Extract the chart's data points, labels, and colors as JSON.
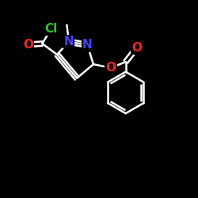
{
  "background": "#000000",
  "bond_color": "#ffffff",
  "bond_width": 1.8,
  "atom_colors": {
    "N": "#4444ff",
    "O": "#ff2222",
    "Cl": "#22cc22",
    "C": "#ffffff"
  },
  "font_size_atom": 11,
  "figsize": [
    2.5,
    2.5
  ],
  "dpi": 100,
  "xlim": [
    0,
    10
  ],
  "ylim": [
    0,
    10
  ]
}
